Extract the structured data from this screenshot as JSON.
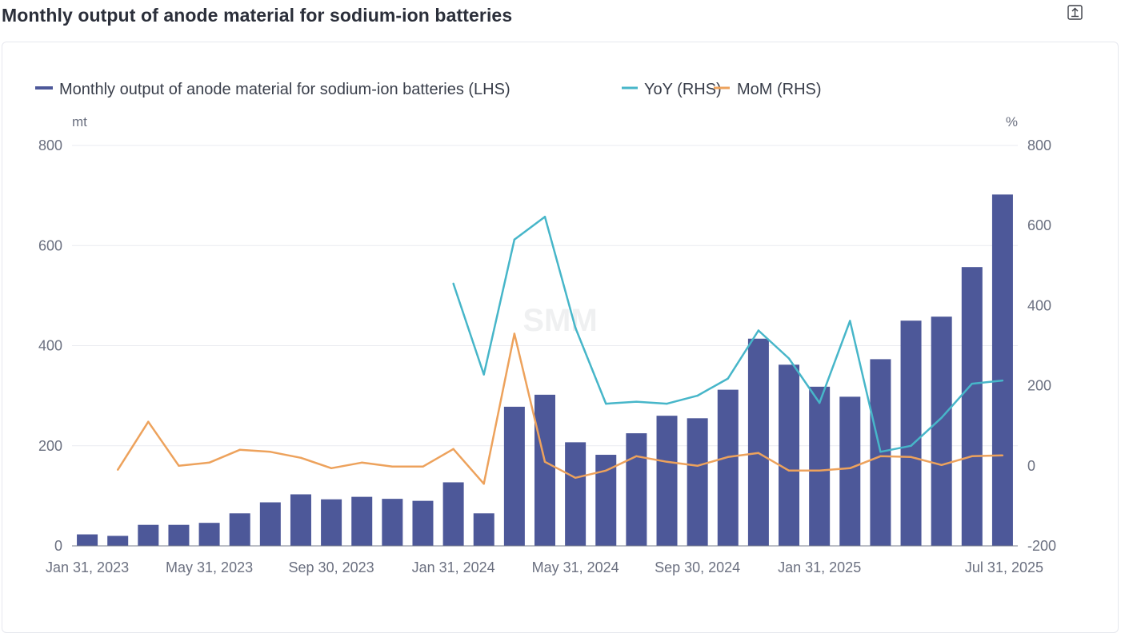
{
  "page": {
    "title": "Monthly output of anode material for sodium-ion batteries",
    "export_icon": "export-icon"
  },
  "colors": {
    "bar": "#4d5899",
    "yoy": "#47b6c9",
    "mom": "#eda25c",
    "grid": "#e9ebf0",
    "axis": "#7a7f8e"
  },
  "chart_data": {
    "type": "bar",
    "legend": [
      {
        "key": "output",
        "label": "Monthly  output of anode material for sodium-ion batteries (LHS)",
        "marker": "bar"
      },
      {
        "key": "yoy",
        "label": "YoY (RHS)",
        "marker": "line"
      },
      {
        "key": "mom",
        "label": "MoM (RHS)",
        "marker": "line"
      }
    ],
    "legend_position": "top-left",
    "y_left_unit": "mt",
    "y_right_unit": "%",
    "y_left_range": [
      0,
      800
    ],
    "y_left_ticks": [
      "0",
      "200",
      "400",
      "600",
      "800"
    ],
    "y_right_range": [
      -200,
      800
    ],
    "y_right_ticks": [
      "-200",
      "0",
      "200",
      "400",
      "600",
      "800"
    ],
    "grid": true,
    "x_tick_labels": [
      {
        "index": 0,
        "label": "Jan 31, 2023"
      },
      {
        "index": 4,
        "label": "May 31, 2023"
      },
      {
        "index": 8,
        "label": "Sep 30, 2023"
      },
      {
        "index": 12,
        "label": "Jan 31, 2024"
      },
      {
        "index": 16,
        "label": "May 31, 2024"
      },
      {
        "index": 20,
        "label": "Sep 30, 2024"
      },
      {
        "index": 24,
        "label": "Jan 31, 2025"
      },
      {
        "index": 30,
        "label": "Jul 31, 2025"
      }
    ],
    "categories": [
      "2023-01",
      "2023-02",
      "2023-03",
      "2023-04",
      "2023-05",
      "2023-06",
      "2023-07",
      "2023-08",
      "2023-09",
      "2023-10",
      "2023-11",
      "2023-12",
      "2024-01",
      "2024-02",
      "2024-03",
      "2024-04",
      "2024-05",
      "2024-06",
      "2024-07",
      "2024-08",
      "2024-09",
      "2024-10",
      "2024-11",
      "2024-12",
      "2025-01",
      "2025-02",
      "2025-03",
      "2025-04",
      "2025-05",
      "2025-06",
      "2025-07"
    ],
    "series": [
      {
        "name": "Monthly  output of anode material for sodium-ion batteries (LHS)",
        "axis": "left",
        "kind": "bar",
        "values": [
          23,
          20,
          42,
          42,
          46,
          65,
          87,
          103,
          93,
          98,
          94,
          90,
          127,
          65,
          278,
          302,
          207,
          182,
          225,
          260,
          255,
          312,
          414,
          362,
          318,
          298,
          373,
          450,
          458,
          557,
          702
        ]
      },
      {
        "name": "YoY (RHS)",
        "axis": "right",
        "kind": "line",
        "values": [
          null,
          null,
          null,
          null,
          null,
          null,
          null,
          null,
          null,
          null,
          null,
          null,
          455,
          228,
          565,
          622,
          345,
          155,
          160,
          155,
          175,
          218,
          338,
          268,
          157,
          362,
          35,
          50,
          120,
          205,
          213
        ]
      },
      {
        "name": "MoM (RHS)",
        "axis": "right",
        "kind": "line",
        "values": [
          null,
          -10,
          110,
          0,
          8,
          40,
          35,
          20,
          -6,
          8,
          -2,
          -2,
          42,
          -45,
          330,
          10,
          -30,
          -12,
          24,
          10,
          0,
          22,
          32,
          -12,
          -12,
          -6,
          24,
          22,
          2,
          24,
          26
        ]
      }
    ]
  }
}
